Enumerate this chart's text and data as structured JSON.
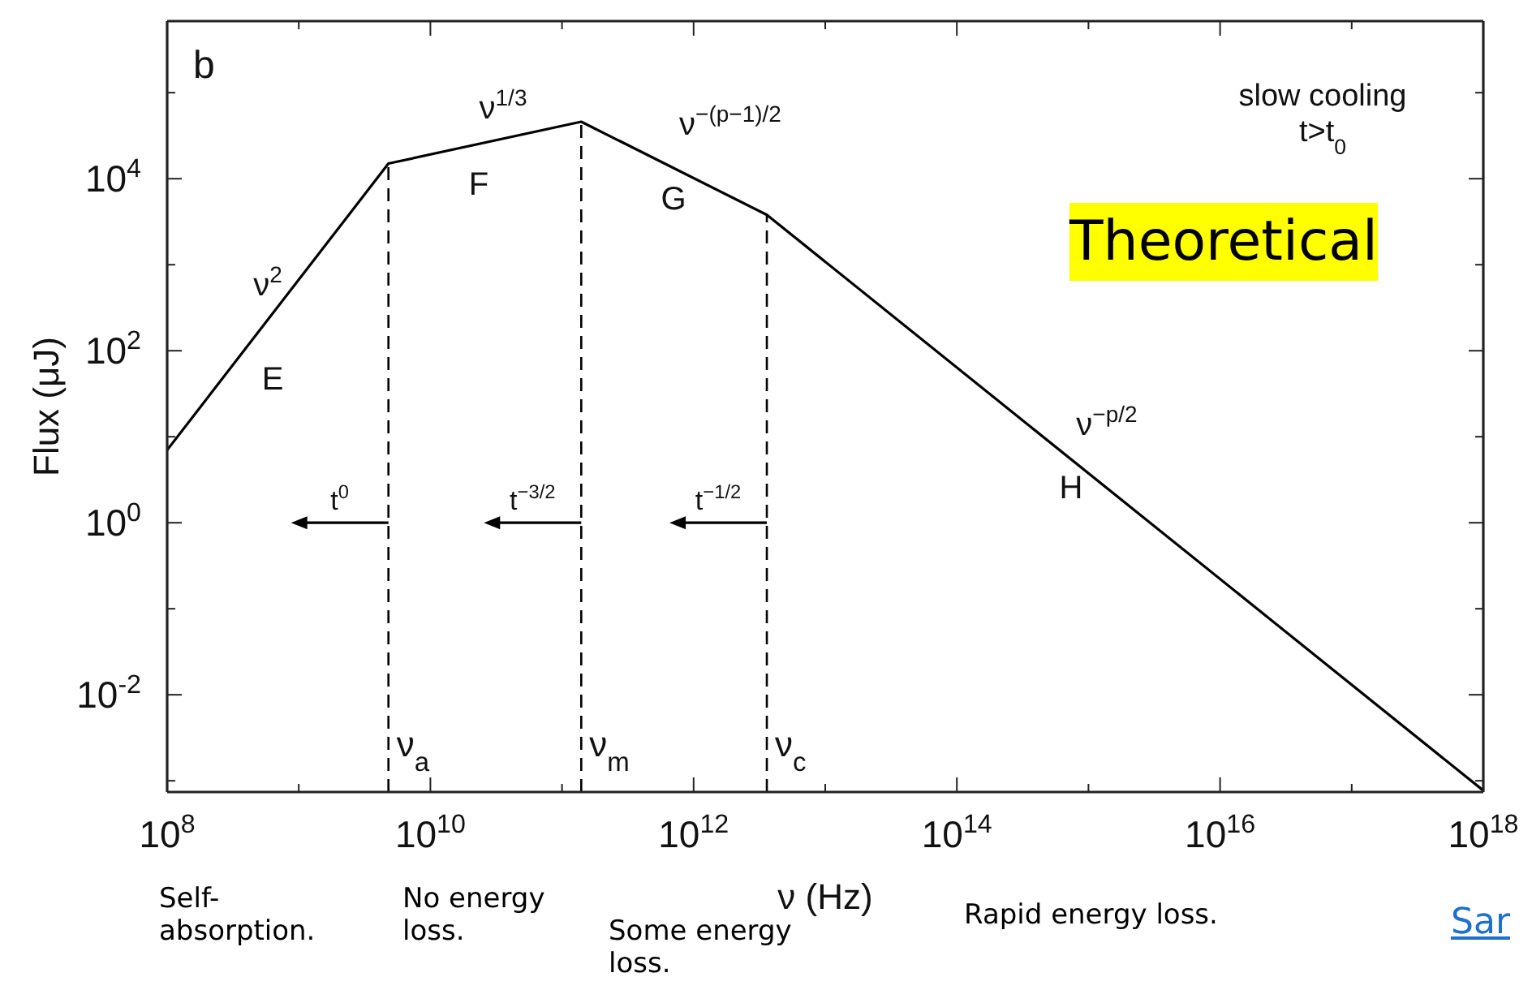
{
  "chart_data": {
    "type": "line",
    "xlabel": "ν (Hz)",
    "ylabel": "Flux (μJ)",
    "log": "xy",
    "marker": "none",
    "line_style": "solid",
    "x": [
      100000000.0,
      4800000000.0,
      140000000000.0,
      3600000000000.0,
      1e+18
    ],
    "series": [
      {
        "color": "#000000",
        "values": [
          7,
          15000,
          46000,
          3800,
          0.00077
        ]
      }
    ],
    "xlim": [
      100000000.0,
      1e+18
    ],
    "xticks": [
      {
        "value": 100000000.0,
        "label": "10$^{8}$"
      },
      {
        "value": 1000000000.0,
        "label": null
      },
      {
        "value": 10000000000.0,
        "label": "10$^{10}$"
      },
      {
        "value": 100000000000.0,
        "label": null
      },
      {
        "value": 1000000000000.0,
        "label": "10$^{12}$"
      },
      {
        "value": 10000000000000.0,
        "label": null
      },
      {
        "value": 100000000000000.0,
        "label": "10$^{14}$"
      },
      {
        "value": 1000000000000000.0,
        "label": null
      },
      {
        "value": 1e+16,
        "label": "10$^{16}$"
      },
      {
        "value": 1e+17,
        "label": null
      },
      {
        "value": 1e+18,
        "label": "10$^{18}$"
      }
    ],
    "ylim": [
      0.00074,
      680000
    ],
    "yticks": [
      {
        "value": 0.001,
        "label": null
      },
      {
        "value": 0.01,
        "label": "10$^{-2}$"
      },
      {
        "value": 0.1,
        "label": null
      },
      {
        "value": 1,
        "label": "10$^{0}$"
      },
      {
        "value": 10,
        "label": null
      },
      {
        "value": 100,
        "label": "10$^{2}$"
      },
      {
        "value": 1000,
        "label": null
      },
      {
        "value": 10000,
        "label": "10$^{4}$"
      },
      {
        "value": 100000,
        "label": null
      }
    ],
    "ref_lines": [
      {
        "axis": "x",
        "value": 4800000000.0,
        "label": "ν$_{a}$",
        "line_style": "dashed",
        "color": "#000000"
      },
      {
        "axis": "x",
        "value": 140000000000.0,
        "label": "ν$_{m}$",
        "line_style": "dashed",
        "color": "#000000"
      },
      {
        "axis": "x",
        "value": 3600000000000.0,
        "label": "ν$_{c}$",
        "line_style": "dashed",
        "color": "#000000"
      }
    ],
    "annotations": [
      "b",
      "slow cooling",
      "t>t$_{0}$",
      "Theoretical",
      "Self-absorption.",
      "No energy loss.",
      "Some energy loss.",
      "Rapid energy loss.",
      "Sar",
      "ν$^{2}$",
      "E",
      "ν$^{1/3}$",
      "F",
      "ν$^{−(p−1)/2}$",
      "G",
      "ν$^{−p/2}$",
      "H",
      {
        "text": "t$^{0}$",
        "x": 4800000000.0,
        "y": 1
      },
      {
        "text": "t$^{−3/2}$",
        "x": 140000000000.0,
        "y": 1
      },
      {
        "text": "t$^{−1/2}$",
        "x": 3600000000000.0,
        "y": 1
      }
    ]
  }
}
